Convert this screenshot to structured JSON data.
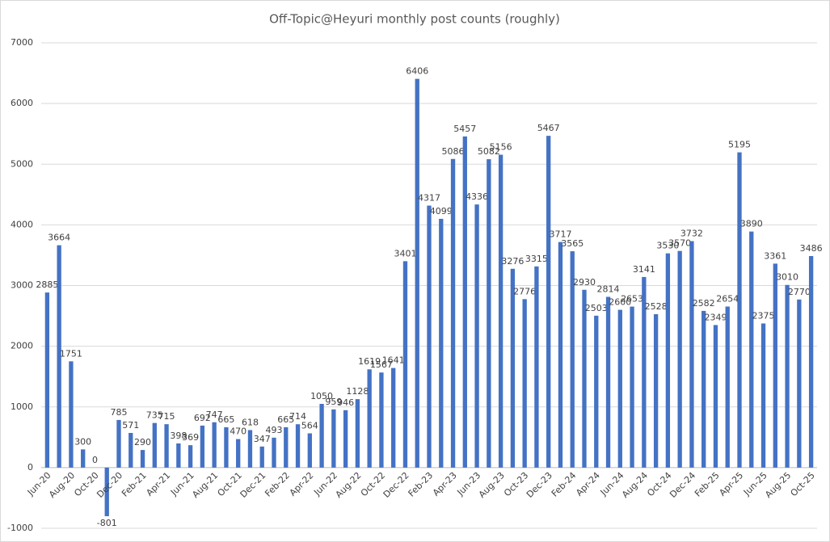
{
  "chart_data": {
    "type": "bar",
    "title": "Off-Topic@Heyuri monthly post counts (roughly)",
    "categories": [
      "Jun-20",
      null,
      "Aug-20",
      null,
      "Oct-20",
      null,
      "Dec-20",
      null,
      "Feb-21",
      null,
      "Apr-21",
      null,
      "Jun-21",
      null,
      "Aug-21",
      null,
      "Oct-21",
      null,
      "Dec-21",
      null,
      "Feb-22",
      null,
      "Apr-22",
      null,
      "Jun-22",
      null,
      "Aug-22",
      null,
      "Oct-22",
      null,
      "Dec-22",
      null,
      "Feb-23",
      null,
      "Apr-23",
      null,
      "Jun-23",
      null,
      "Aug-23",
      null,
      "Oct-23",
      null,
      "Dec-23",
      null,
      "Feb-24",
      null,
      "Apr-24",
      null,
      "Jun-24",
      null,
      "Aug-24",
      null,
      "Oct-24",
      null,
      "Dec-24",
      null,
      "Feb-25",
      null,
      "Apr-25",
      null,
      "Jun-25",
      null,
      "Aug-25",
      null,
      "Oct-25"
    ],
    "values": [
      2885,
      3664,
      1751,
      300,
      0,
      -801,
      785,
      571,
      290,
      735,
      715,
      398,
      369,
      692,
      747,
      665,
      470,
      618,
      347,
      493,
      665,
      714,
      564,
      1050,
      959,
      946,
      1128,
      1619,
      1567,
      1641,
      3401,
      6406,
      4317,
      4099,
      5086,
      5457,
      4336,
      5082,
      5156,
      3276,
      2776,
      3315,
      5467,
      3717,
      3565,
      2930,
      2503,
      2814,
      2600,
      2653,
      3141,
      2528,
      3530,
      3570,
      3732,
      2582,
      2349,
      2654,
      5195,
      3890,
      2375,
      3361,
      3010,
      2770,
      3486
    ],
    "color": "#4472c4",
    "ylim": [
      -1000,
      7000
    ],
    "yticks": [
      -1000,
      0,
      1000,
      2000,
      3000,
      4000,
      5000,
      6000,
      7000
    ],
    "grid": true
  }
}
